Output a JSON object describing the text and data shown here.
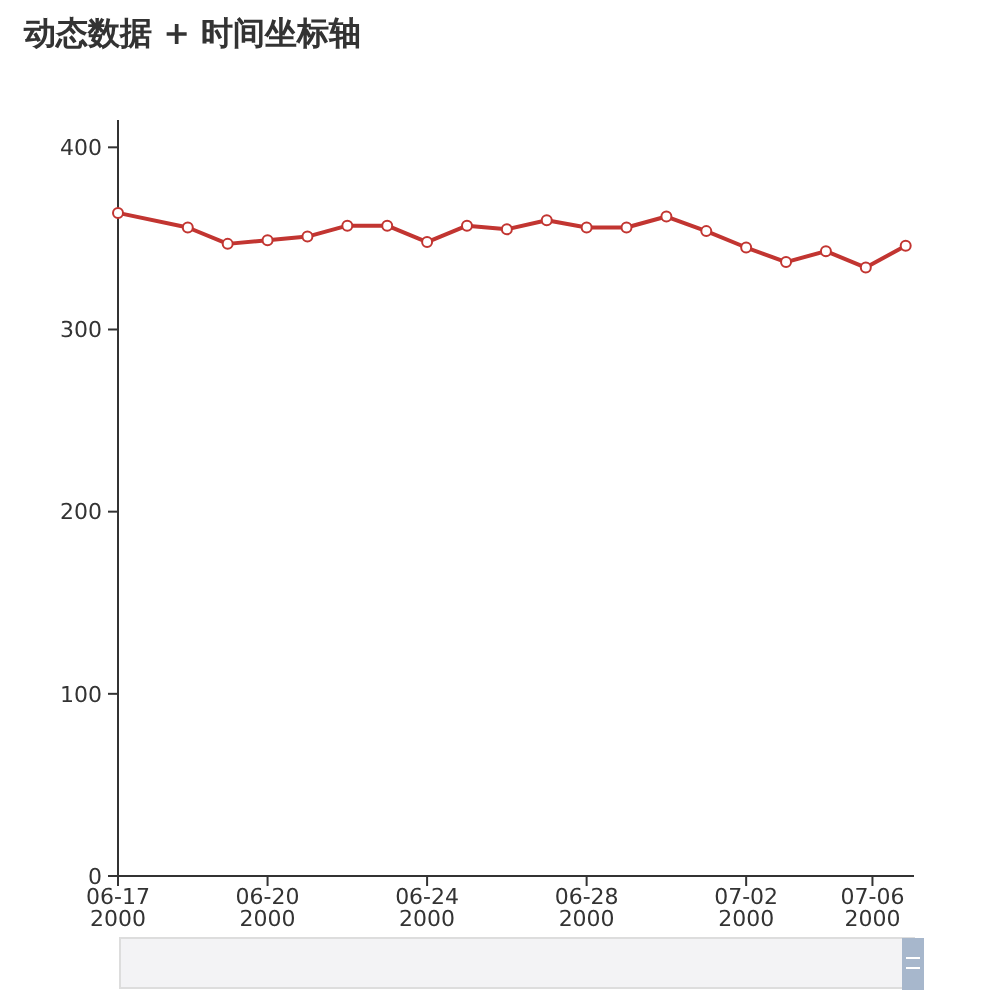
{
  "chart_data": {
    "type": "line",
    "title": "动态数据 + 时间坐标轴",
    "x": [
      "2000-06-16T06:00",
      "2000-06-18",
      "2000-06-19",
      "2000-06-20",
      "2000-06-21",
      "2000-06-22",
      "2000-06-23",
      "2000-06-24",
      "2000-06-25",
      "2000-06-26",
      "2000-06-27",
      "2000-06-28",
      "2000-06-29",
      "2000-06-30",
      "2000-07-01",
      "2000-07-02",
      "2000-07-03",
      "2000-07-04",
      "2000-07-05",
      "2000-07-06"
    ],
    "series": [
      {
        "color": "#c23531",
        "values": [
          364,
          356,
          347,
          349,
          351,
          357,
          357,
          348,
          357,
          355,
          360,
          356,
          356,
          362,
          354,
          345,
          337,
          343,
          334,
          346
        ]
      }
    ],
    "xlim": [
      "2000-06-16T06:00",
      "2000-07-06T05:00"
    ],
    "xticks": [
      {
        "value": "2000-06-16T06:00",
        "label": "06-17\n2000"
      },
      {
        "value": "2000-06-20",
        "label": "06-20\n2000"
      },
      {
        "value": "2000-06-24",
        "label": "06-24\n2000"
      },
      {
        "value": "2000-06-28",
        "label": "06-28\n2000"
      },
      {
        "value": "2000-07-02",
        "label": "07-02\n2000"
      },
      {
        "value": "2000-07-05T04:00",
        "label": "07-06\n2000"
      }
    ],
    "ylim": [
      0,
      415
    ],
    "yticks": [
      0,
      100,
      200,
      300,
      400
    ],
    "grid": false,
    "marker": "circle",
    "line_style": "solid"
  }
}
